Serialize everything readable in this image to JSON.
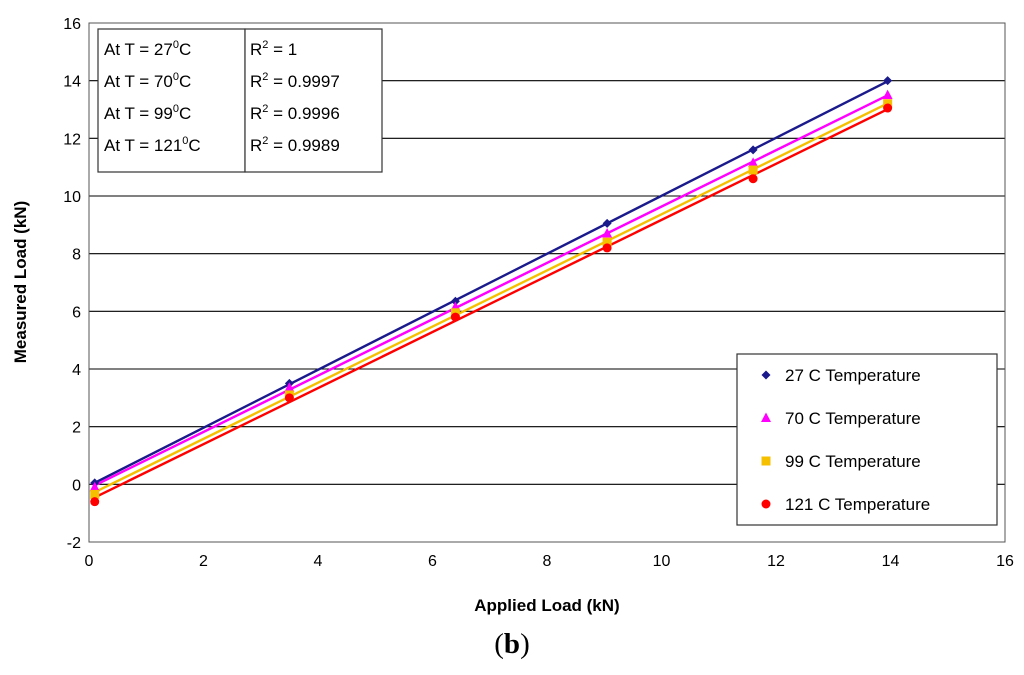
{
  "caption": {
    "open": "(",
    "letter": "b",
    "close": ")"
  },
  "annotation_box": {
    "rows": [
      {
        "left": "At T = 27",
        "sup_left": "0",
        "left_end": "C",
        "r": "R",
        "sup_r": "2",
        "r_end": " = 1"
      },
      {
        "left": "At T = 70",
        "sup_left": "0",
        "left_end": "C",
        "r": "R",
        "sup_r": "2",
        "r_end": " = 0.9997"
      },
      {
        "left": "At T = 99",
        "sup_left": "0",
        "left_end": "C",
        "r": "R",
        "sup_r": "2",
        "r_end": " = 0.9996"
      },
      {
        "left": "At T = 121",
        "sup_left": "0",
        "left_end": "C",
        "r": "R",
        "sup_r": "2",
        "r_end": " = 0.9989"
      }
    ]
  },
  "chart_data": {
    "type": "scatter",
    "xlabel": "Applied Load (kN)",
    "ylabel": "Measured Load (kN)",
    "xlim": [
      0,
      16
    ],
    "ylim": [
      -2,
      16
    ],
    "xticks": [
      0,
      2,
      4,
      6,
      8,
      10,
      12,
      14,
      16
    ],
    "yticks": [
      -2,
      0,
      2,
      4,
      6,
      8,
      10,
      12,
      14,
      16
    ],
    "grid": "horizontal",
    "legend_position": "bottom-right",
    "trendlines": true,
    "series": [
      {
        "name": "27 C Temperature",
        "color": "#1a1a8c",
        "marker": "diamond",
        "x": [
          0.1,
          3.5,
          6.4,
          9.05,
          11.6,
          13.95
        ],
        "y": [
          0.05,
          3.5,
          6.35,
          9.05,
          11.6,
          14.0
        ]
      },
      {
        "name": "70 C Temperature",
        "color": "#ff00ff",
        "marker": "triangle",
        "x": [
          0.1,
          3.5,
          6.4,
          9.05,
          11.6,
          13.95
        ],
        "y": [
          -0.1,
          3.35,
          6.15,
          8.7,
          11.15,
          13.5
        ]
      },
      {
        "name": "99 C Temperature",
        "color": "#f5c000",
        "marker": "square",
        "x": [
          0.1,
          3.5,
          6.4,
          9.05,
          11.6,
          13.95
        ],
        "y": [
          -0.35,
          3.1,
          5.95,
          8.4,
          10.9,
          13.2
        ]
      },
      {
        "name": "121 C Temperature",
        "color": "#ff0000",
        "marker": "circle",
        "x": [
          0.1,
          3.5,
          6.4,
          9.05,
          11.6,
          13.95
        ],
        "y": [
          -0.6,
          3.0,
          5.8,
          8.2,
          10.6,
          13.05
        ]
      }
    ]
  }
}
